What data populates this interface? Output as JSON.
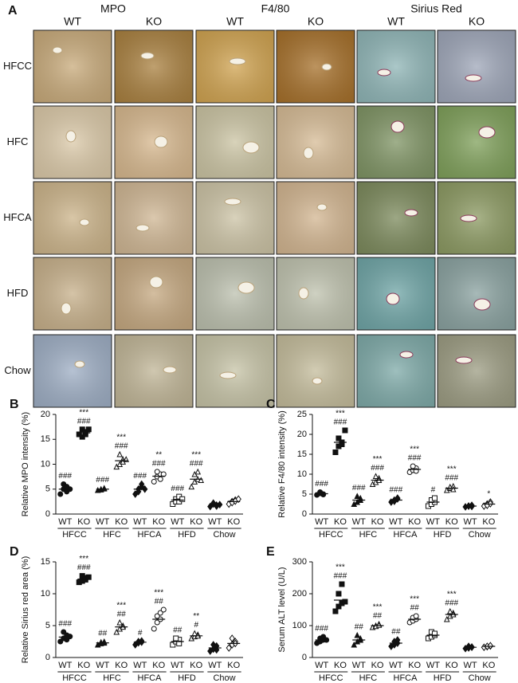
{
  "panel_a": {
    "panel_label": "A",
    "stains": [
      "MPO",
      "F4/80",
      "Sirius Red"
    ],
    "genotypes": [
      "WT",
      "KO",
      "WT",
      "KO",
      "WT",
      "KO"
    ],
    "diets": [
      "HFCC",
      "HFC",
      "HFCA",
      "HFD",
      "Chow"
    ]
  },
  "chart_data": [
    {
      "type": "dot",
      "panel": "B",
      "y_label": "Relative MPO intensity (%)",
      "ylim": [
        0,
        20
      ],
      "yticks": [
        0,
        5,
        10,
        15,
        20
      ],
      "categories": [
        "WT",
        "KO",
        "WT",
        "KO",
        "WT",
        "KO",
        "WT",
        "KO",
        "WT",
        "KO"
      ],
      "groups": [
        "HFCC",
        "HFC",
        "HFCA",
        "HFD",
        "Chow"
      ],
      "markers": [
        "circle-filled",
        "square-filled",
        "triangle-filled",
        "triangle-open",
        "diamond-filled",
        "circle-open",
        "square-open",
        "triangle-open",
        "diamond-filled",
        "diamond-open"
      ],
      "points": [
        [
          4,
          5,
          5.5,
          6,
          4.5,
          5
        ],
        [
          16,
          17,
          16.5,
          15.5,
          16,
          17
        ],
        [
          4.8,
          5,
          5.2,
          4.9,
          5.1
        ],
        [
          9.5,
          10,
          11,
          12,
          10.5,
          11
        ],
        [
          4,
          5,
          6,
          4.5,
          5.5,
          5
        ],
        [
          6.5,
          7.5,
          8,
          8.5,
          7,
          8
        ],
        [
          2,
          3,
          3.5,
          2.5,
          2.5,
          3
        ],
        [
          5.5,
          6.5,
          7,
          8,
          8.5,
          6.8
        ],
        [
          1.5,
          2,
          1.8,
          2.2,
          1.6,
          1.9
        ],
        [
          2,
          2.5,
          2.8,
          2.3,
          2.6,
          3
        ]
      ],
      "means": [
        5,
        16.3,
        5,
        10.7,
        5,
        7.6,
        2.8,
        7,
        1.8,
        2.5
      ],
      "annotations": [
        [
          "###"
        ],
        [
          "***",
          "###"
        ],
        [
          "###"
        ],
        [
          "***",
          "###"
        ],
        [
          "###"
        ],
        [
          "**",
          "###"
        ],
        [
          "###"
        ],
        [
          "***",
          "###"
        ],
        null,
        null
      ]
    },
    {
      "type": "dot",
      "panel": "C",
      "y_label": "Relative F4/80 intensity (%)",
      "ylim": [
        0,
        25
      ],
      "yticks": [
        0,
        5,
        10,
        15,
        20,
        25
      ],
      "categories": [
        "WT",
        "KO",
        "WT",
        "KO",
        "WT",
        "KO",
        "WT",
        "KO",
        "WT",
        "KO"
      ],
      "groups": [
        "HFCC",
        "HFC",
        "HFCA",
        "HFD",
        "Chow"
      ],
      "markers": [
        "circle-filled",
        "square-filled",
        "triangle-filled",
        "triangle-open",
        "diamond-filled",
        "circle-open",
        "square-open",
        "triangle-open",
        "diamond-filled",
        "diamond-open"
      ],
      "points": [
        [
          4.8,
          5.2,
          5,
          5.5,
          4.9
        ],
        [
          15.5,
          17,
          18,
          19,
          17.5,
          21
        ],
        [
          2.5,
          3,
          3.5,
          4.5,
          4
        ],
        [
          7.5,
          8,
          9,
          9.5,
          8.5
        ],
        [
          3,
          3.5,
          4,
          3.2,
          3.8
        ],
        [
          10.5,
          11,
          11.5,
          12,
          10.8
        ],
        [
          2,
          2.5,
          3,
          3.5,
          4
        ],
        [
          6,
          6.5,
          7,
          6.8,
          6.2
        ],
        [
          1.8,
          2,
          2.2,
          2,
          1.9
        ],
        [
          2,
          2.5,
          3,
          2.2,
          2.6
        ]
      ],
      "means": [
        5.1,
        18,
        3.5,
        8.5,
        3.5,
        11.2,
        3,
        6.5,
        2,
        2.5
      ],
      "annotations": [
        [
          "###"
        ],
        [
          "***",
          "###"
        ],
        [
          "###"
        ],
        [
          "***",
          "###"
        ],
        [
          "###"
        ],
        [
          "***",
          "###"
        ],
        [
          "#"
        ],
        [
          "***",
          "###"
        ],
        null,
        [
          "*"
        ]
      ]
    },
    {
      "type": "dot",
      "panel": "D",
      "y_label": "Relative Sirius red area (%)",
      "ylim": [
        0,
        15
      ],
      "yticks": [
        0,
        5,
        10,
        15
      ],
      "categories": [
        "WT",
        "KO",
        "WT",
        "KO",
        "WT",
        "KO",
        "WT",
        "KO",
        "WT",
        "KO"
      ],
      "groups": [
        "HFCC",
        "HFC",
        "HFCA",
        "HFD",
        "Chow"
      ],
      "markers": [
        "circle-filled",
        "square-filled",
        "triangle-filled",
        "triangle-open",
        "diamond-filled",
        "circle-open",
        "square-open",
        "triangle-open",
        "diamond-filled",
        "diamond-open"
      ],
      "points": [
        [
          2.5,
          3,
          3.5,
          4,
          2.8,
          3.3
        ],
        [
          11.8,
          12,
          12.5,
          12.8,
          12.2,
          12.6
        ],
        [
          2,
          2.2,
          2.5,
          2.4,
          2.3
        ],
        [
          4,
          4.5,
          5,
          5.5,
          4.8
        ],
        [
          2,
          2.3,
          2.6,
          2.5,
          2.4
        ],
        [
          4.5,
          5.5,
          6,
          6.5,
          7,
          7.5
        ],
        [
          2,
          2.5,
          2.8,
          3,
          2.2
        ],
        [
          3,
          3.3,
          3.6,
          3.8,
          3.4
        ],
        [
          1,
          1.3,
          1.8,
          2,
          1.2
        ],
        [
          1.5,
          2,
          2.5,
          3,
          2.2
        ]
      ],
      "means": [
        3.2,
        12.3,
        2.3,
        4.8,
        2.4,
        6,
        2.5,
        3.4,
        1.5,
        2.2
      ],
      "annotations": [
        [
          "###"
        ],
        [
          "***",
          "###"
        ],
        [
          "##"
        ],
        [
          "***",
          "##"
        ],
        [
          "#"
        ],
        [
          "***",
          "##"
        ],
        [
          "##"
        ],
        [
          "**",
          "#"
        ],
        null,
        null
      ]
    },
    {
      "type": "dot",
      "panel": "E",
      "y_label": "Serum ALT level (U/L)",
      "ylim": [
        0,
        300
      ],
      "yticks": [
        0,
        100,
        200,
        300
      ],
      "categories": [
        "WT",
        "KO",
        "WT",
        "KO",
        "WT",
        "KO",
        "WT",
        "KO",
        "WT",
        "KO"
      ],
      "groups": [
        "HFCC",
        "HFC",
        "HFCA",
        "HFD",
        "Chow"
      ],
      "markers": [
        "circle-filled",
        "square-filled",
        "triangle-filled",
        "triangle-open",
        "diamond-filled",
        "circle-open",
        "square-open",
        "triangle-open",
        "diamond-filled",
        "diamond-open"
      ],
      "points": [
        [
          45,
          50,
          55,
          60,
          65,
          55
        ],
        [
          145,
          160,
          170,
          200,
          230,
          175
        ],
        [
          40,
          50,
          60,
          70,
          55
        ],
        [
          95,
          100,
          105,
          98,
          102
        ],
        [
          35,
          40,
          45,
          50,
          55
        ],
        [
          110,
          115,
          120,
          125,
          130
        ],
        [
          60,
          65,
          70,
          80,
          75
        ],
        [
          120,
          130,
          140,
          145,
          135
        ],
        [
          28,
          30,
          32,
          35,
          33
        ],
        [
          32,
          34,
          36,
          35,
          37
        ]
      ],
      "means": [
        55,
        180,
        55,
        100,
        45,
        120,
        70,
        135,
        32,
        35
      ],
      "annotations": [
        [
          "###"
        ],
        [
          "***",
          "###"
        ],
        [
          "##"
        ],
        [
          "***",
          "##"
        ],
        [
          "##"
        ],
        [
          "***",
          "##"
        ],
        null,
        [
          "***",
          "###"
        ],
        null,
        null
      ]
    }
  ]
}
